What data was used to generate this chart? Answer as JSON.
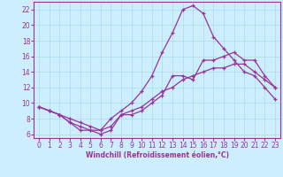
{
  "background_color": "#cceeff",
  "grid_color": "#aadddd",
  "line_color": "#993399",
  "marker_color": "#993399",
  "xlabel": "Windchill (Refroidissement éolien,°C)",
  "xlim": [
    -0.5,
    23.5
  ],
  "ylim": [
    5.5,
    23
  ],
  "xticks": [
    0,
    1,
    2,
    3,
    4,
    5,
    6,
    7,
    8,
    9,
    10,
    11,
    12,
    13,
    14,
    15,
    16,
    17,
    18,
    19,
    20,
    21,
    22,
    23
  ],
  "yticks": [
    6,
    8,
    10,
    12,
    14,
    16,
    18,
    20,
    22
  ],
  "line2_x": [
    0,
    1,
    2,
    3,
    4,
    5,
    6,
    7,
    8,
    9,
    10,
    11,
    12,
    13,
    14,
    15,
    16,
    17,
    18,
    19,
    20,
    21,
    22,
    23
  ],
  "line2_y": [
    9.5,
    9.0,
    8.5,
    8.0,
    7.5,
    7.0,
    6.5,
    8.0,
    9.0,
    10.0,
    11.5,
    13.5,
    16.5,
    19.0,
    22.0,
    22.5,
    21.5,
    18.5,
    17.0,
    15.5,
    14.0,
    13.5,
    12.0,
    10.5
  ],
  "line1_x": [
    0,
    1,
    2,
    3,
    4,
    5,
    6,
    7,
    8,
    9,
    10,
    11,
    12,
    13,
    14,
    15,
    16,
    17,
    18,
    19,
    20,
    21,
    22,
    23
  ],
  "line1_y": [
    9.5,
    9.0,
    8.5,
    7.5,
    6.5,
    6.5,
    6.0,
    6.5,
    8.5,
    8.5,
    9.0,
    10.0,
    11.0,
    13.5,
    13.5,
    13.0,
    15.5,
    15.5,
    16.0,
    16.5,
    15.5,
    15.5,
    13.5,
    12.0
  ],
  "line3_x": [
    0,
    1,
    2,
    3,
    4,
    5,
    6,
    7,
    8,
    9,
    10,
    11,
    12,
    13,
    14,
    15,
    16,
    17,
    18,
    19,
    20,
    21,
    22,
    23
  ],
  "line3_y": [
    9.5,
    9.0,
    8.5,
    7.5,
    7.0,
    6.5,
    6.5,
    7.0,
    8.5,
    9.0,
    9.5,
    10.5,
    11.5,
    12.0,
    13.0,
    13.5,
    14.0,
    14.5,
    14.5,
    15.0,
    15.0,
    14.0,
    13.0,
    12.0
  ],
  "tick_fontsize": 5.5,
  "xlabel_fontsize": 5.5,
  "linewidth": 0.9,
  "markersize": 3.5
}
